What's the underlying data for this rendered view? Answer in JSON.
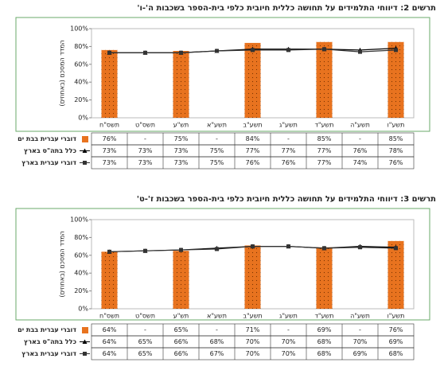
{
  "chart_data": [
    {
      "type": "combo",
      "title": "תרשים 2: דיווחי התלמידים על תחושה כללית חיובית כלפי בית-הספר בשכבות ה'-ו'",
      "y_label": "המדד המסכם (באחוזים)",
      "categories": [
        "תשס\"ח",
        "תשס\"ט",
        "תש\"ע",
        "תשע\"א",
        "תשע\"ב",
        "תשע\"ג",
        "תשע\"ד",
        "תשע\"ה",
        "תשע\"ו"
      ],
      "ylim": [
        0,
        100
      ],
      "yticks": [
        {
          "value": 0,
          "label": "0%"
        },
        {
          "value": 20,
          "label": "20%"
        },
        {
          "value": 40,
          "label": "40%"
        },
        {
          "value": 60,
          "label": "60%"
        },
        {
          "value": 80,
          "label": "80%"
        },
        {
          "value": 100,
          "label": "100%"
        }
      ],
      "series": [
        {
          "name": "דוברי עברית בבת ים",
          "type": "bar",
          "color": "#e8731f",
          "values": [
            76,
            null,
            75,
            null,
            84,
            null,
            85,
            null,
            85
          ],
          "value_labels": [
            "76%",
            "-",
            "75%",
            "-",
            "84%",
            "-",
            "85%",
            "-",
            "85%"
          ]
        },
        {
          "name": "כלל בתה\"ס בארץ",
          "type": "line",
          "marker": "triangle",
          "color": "#000000",
          "values": [
            73,
            73,
            73,
            75,
            77,
            77,
            77,
            76,
            78
          ],
          "value_labels": [
            "73%",
            "73%",
            "73%",
            "75%",
            "77%",
            "77%",
            "77%",
            "76%",
            "78%"
          ]
        },
        {
          "name": "דוברי עברית בארץ",
          "type": "line",
          "marker": "square",
          "color": "#333333",
          "values": [
            73,
            73,
            73,
            75,
            76,
            76,
            77,
            74,
            76
          ],
          "value_labels": [
            "73%",
            "73%",
            "73%",
            "75%",
            "76%",
            "76%",
            "77%",
            "74%",
            "76%"
          ]
        }
      ]
    },
    {
      "type": "combo",
      "title": "תרשים 3: דיווחי התלמידים על תחושה כללית חיובית כלפי בית-הספר בשכבות ז'-ט'",
      "y_label": "המדד המסכם (באחוזים)",
      "categories": [
        "תשס\"ח",
        "תשס\"ט",
        "תש\"ע",
        "תשע\"א",
        "תשע\"ב",
        "תשע\"ג",
        "תשע\"ד",
        "תשע\"ה",
        "תשע\"ו"
      ],
      "ylim": [
        0,
        100
      ],
      "yticks": [
        {
          "value": 0,
          "label": "0%"
        },
        {
          "value": 20,
          "label": "20%"
        },
        {
          "value": 40,
          "label": "40%"
        },
        {
          "value": 60,
          "label": "60%"
        },
        {
          "value": 80,
          "label": "80%"
        },
        {
          "value": 100,
          "label": "100%"
        }
      ],
      "series": [
        {
          "name": "דוברי עברית בבת ים",
          "type": "bar",
          "color": "#e8731f",
          "values": [
            64,
            null,
            65,
            null,
            71,
            null,
            69,
            null,
            76
          ],
          "value_labels": [
            "64%",
            "-",
            "65%",
            "-",
            "71%",
            "-",
            "69%",
            "-",
            "76%"
          ]
        },
        {
          "name": "כלל בתה\"ס בארץ",
          "type": "line",
          "marker": "triangle",
          "color": "#000000",
          "values": [
            64,
            65,
            66,
            68,
            70,
            70,
            68,
            70,
            69
          ],
          "value_labels": [
            "64%",
            "65%",
            "66%",
            "68%",
            "70%",
            "70%",
            "68%",
            "70%",
            "69%"
          ]
        },
        {
          "name": "דוברי עברית בארץ",
          "type": "line",
          "marker": "square",
          "color": "#333333",
          "values": [
            64,
            65,
            66,
            67,
            70,
            70,
            68,
            69,
            68
          ],
          "value_labels": [
            "64%",
            "65%",
            "66%",
            "67%",
            "70%",
            "70%",
            "68%",
            "69%",
            "68%"
          ]
        }
      ]
    }
  ]
}
